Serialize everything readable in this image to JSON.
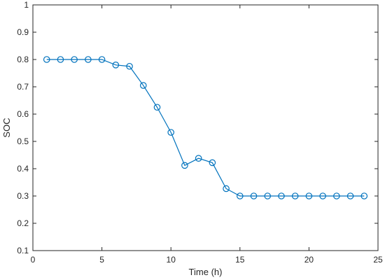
{
  "chart_data": {
    "type": "line",
    "title": "",
    "xlabel": "Time (h)",
    "ylabel": "SOC",
    "xlim": [
      0,
      25
    ],
    "ylim": [
      0.1,
      1
    ],
    "xticks": [
      "0",
      "5",
      "10",
      "15",
      "20",
      "25"
    ],
    "yticks": [
      "0.1",
      "0.2",
      "0.3",
      "0.4",
      "0.5",
      "0.6",
      "0.7",
      "0.8",
      "0.9",
      "1"
    ],
    "grid": false,
    "legend": "none",
    "series": [
      {
        "color": "#0072BD",
        "marker": "circle",
        "x": [
          1,
          2,
          3,
          4,
          5,
          6,
          7,
          8,
          9,
          10,
          11,
          12,
          13,
          14,
          15,
          16,
          17,
          18,
          19,
          20,
          21,
          22,
          23,
          24
        ],
        "values": [
          0.8,
          0.8,
          0.8,
          0.8,
          0.8,
          0.78,
          0.775,
          0.705,
          0.625,
          0.533,
          0.412,
          0.438,
          0.422,
          0.327,
          0.3,
          0.3,
          0.3,
          0.3,
          0.3,
          0.3,
          0.3,
          0.3,
          0.3,
          0.3
        ]
      }
    ]
  }
}
